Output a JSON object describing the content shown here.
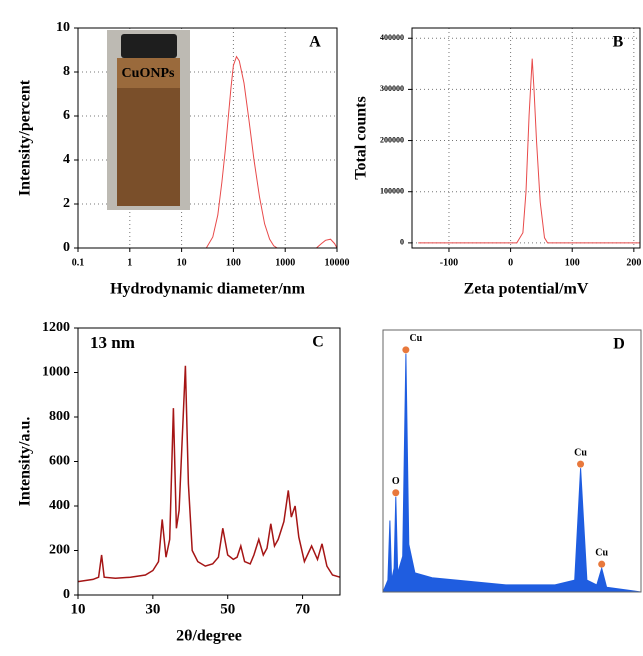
{
  "chart_data": [
    {
      "type": "line",
      "panel_label": "A",
      "inset_label": "CuONPs",
      "x_label": "Hydrodynamic diameter/nm",
      "y_label": "Intensity/percent",
      "x_scale": "log",
      "grid": true,
      "xlim": [
        0.1,
        10000
      ],
      "xticks": [
        0.1,
        1,
        10,
        100,
        1000,
        10000
      ],
      "ylim": [
        0,
        10
      ],
      "yticks": [
        0,
        2,
        4,
        6,
        8,
        10
      ],
      "x": [
        0.1,
        1,
        10,
        30,
        40,
        50,
        60,
        70,
        80,
        90,
        100,
        115,
        130,
        160,
        200,
        250,
        320,
        400,
        500,
        600,
        700,
        4000,
        5000,
        6000,
        7500,
        9000,
        10000
      ],
      "series": [
        {
          "color": "#e84a4a",
          "values": [
            0,
            0,
            0,
            0,
            0.5,
            1.5,
            3,
            4.5,
            6,
            7.3,
            8.3,
            8.7,
            8.5,
            7.5,
            5.8,
            4,
            2.3,
            1.1,
            0.4,
            0.1,
            0,
            0,
            0.2,
            0.35,
            0.4,
            0.2,
            0
          ]
        }
      ]
    },
    {
      "type": "line",
      "panel_label": "B",
      "x_label": "Zeta potential/mV",
      "y_label": "Total counts",
      "grid": true,
      "xlim": [
        -160,
        210
      ],
      "xticks": [
        -100,
        0,
        100,
        200
      ],
      "ylim": [
        -10000,
        420000
      ],
      "yticks": [
        0,
        100000,
        200000,
        300000,
        400000
      ],
      "x": [
        -150,
        10,
        20,
        25,
        30,
        35,
        38,
        42,
        48,
        55,
        60,
        210
      ],
      "series": [
        {
          "color": "#e84a4a",
          "values": [
            0,
            0,
            20000,
            100000,
            250000,
            360000,
            300000,
            200000,
            80000,
            10000,
            0,
            0
          ]
        }
      ]
    },
    {
      "type": "line",
      "panel_label": "C",
      "annotation": "13 nm",
      "x_label": "2θ/degree",
      "y_label": "Intensity/a.u.",
      "grid": false,
      "xlim": [
        10,
        80
      ],
      "xticks": [
        10,
        30,
        50,
        70
      ],
      "ylim": [
        0,
        1200
      ],
      "yticks": [
        0,
        200,
        400,
        600,
        800,
        1000,
        1200
      ],
      "x": [
        10,
        12,
        14,
        15.5,
        16.3,
        17,
        20,
        24,
        28,
        30,
        31.5,
        32.5,
        33.5,
        34.5,
        35.5,
        36.3,
        37,
        38.7,
        39.5,
        40.5,
        42,
        44,
        46,
        47.5,
        48.7,
        50,
        51.5,
        52.5,
        53.5,
        54.5,
        56,
        57,
        58.3,
        59.5,
        60.5,
        61.5,
        62.5,
        63.5,
        65,
        66.2,
        67,
        68,
        69,
        70.5,
        72.4,
        74,
        75.2,
        76.5,
        78,
        80
      ],
      "series": [
        {
          "color": "#a51515",
          "values": [
            60,
            65,
            70,
            80,
            180,
            80,
            75,
            80,
            90,
            110,
            150,
            340,
            170,
            250,
            840,
            300,
            380,
            1030,
            500,
            200,
            150,
            130,
            140,
            170,
            300,
            180,
            160,
            170,
            220,
            150,
            140,
            180,
            250,
            180,
            210,
            320,
            220,
            250,
            330,
            470,
            350,
            400,
            260,
            150,
            220,
            160,
            230,
            130,
            90,
            80
          ]
        }
      ]
    },
    {
      "type": "area",
      "panel_label": "D",
      "xlim": [
        0,
        10.5
      ],
      "ylim": [
        0,
        110
      ],
      "x": [
        0,
        0.2,
        0.28,
        0.35,
        0.45,
        0.52,
        0.6,
        0.8,
        0.93,
        1.05,
        1.3,
        2,
        3,
        5,
        7,
        7.8,
        8.04,
        8.3,
        8.7,
        8.9,
        9.1,
        10.5
      ],
      "series": [
        {
          "color": "#1f5de0",
          "values": [
            0,
            5,
            30,
            5,
            10,
            40,
            8,
            15,
            100,
            20,
            8,
            6,
            5,
            3,
            3,
            5,
            52,
            5,
            3,
            10,
            2,
            0
          ]
        }
      ],
      "peak_labels": [
        {
          "label": "O",
          "x": 0.52
        },
        {
          "label": "Cu",
          "x": 0.93
        },
        {
          "label": "Cu",
          "x": 8.04
        },
        {
          "label": "Cu",
          "x": 8.9
        }
      ]
    }
  ]
}
